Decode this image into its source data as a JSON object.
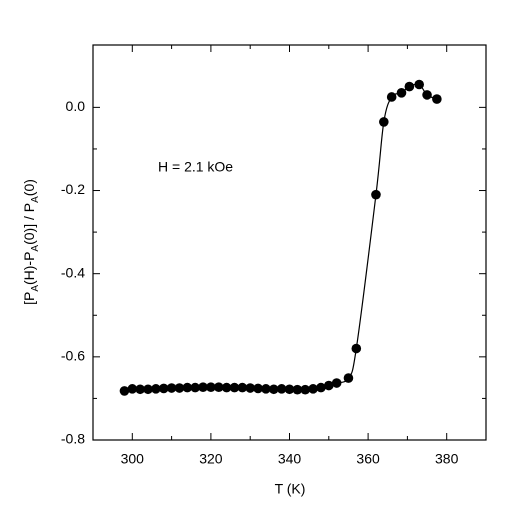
{
  "chart_data": {
    "type": "scatter",
    "xlabel": "T (K)",
    "ylabel": [
      "[P",
      "A",
      "(H)-P",
      "A",
      "(0)] / P",
      "A",
      "(0)"
    ],
    "annotation": "H = 2.1 kOe",
    "xlim": [
      290,
      390
    ],
    "xticks": [
      300,
      320,
      340,
      360,
      380
    ],
    "ylim": [
      -0.8,
      0.15
    ],
    "yticks": [
      {
        "value": -0.8,
        "label": "-0.8"
      },
      {
        "value": -0.6,
        "label": "-0.6"
      },
      {
        "value": -0.4,
        "label": "-0.4"
      },
      {
        "value": -0.2,
        "label": "-0.2"
      },
      {
        "value": 0,
        "label": "0.0"
      }
    ],
    "color": "#000000",
    "series": [
      {
        "x": [
          298,
          300,
          302,
          304,
          306,
          308,
          310,
          312,
          314,
          316,
          318,
          320,
          322,
          324,
          326,
          328,
          330,
          332,
          334,
          336,
          338,
          340,
          342,
          344,
          346,
          348,
          350,
          352,
          355,
          357,
          362,
          364,
          366,
          368.5,
          370.5,
          373,
          375,
          377.5
        ],
        "values": [
          -0.682,
          -0.677,
          -0.678,
          -0.678,
          -0.677,
          -0.676,
          -0.675,
          -0.675,
          -0.674,
          -0.674,
          -0.673,
          -0.673,
          -0.673,
          -0.674,
          -0.674,
          -0.674,
          -0.675,
          -0.676,
          -0.677,
          -0.678,
          -0.677,
          -0.678,
          -0.679,
          -0.679,
          -0.677,
          -0.674,
          -0.669,
          -0.663,
          -0.651,
          -0.58,
          -0.21,
          -0.035,
          0.025,
          0.035,
          0.05,
          0.055,
          0.03,
          0.02
        ]
      }
    ]
  }
}
